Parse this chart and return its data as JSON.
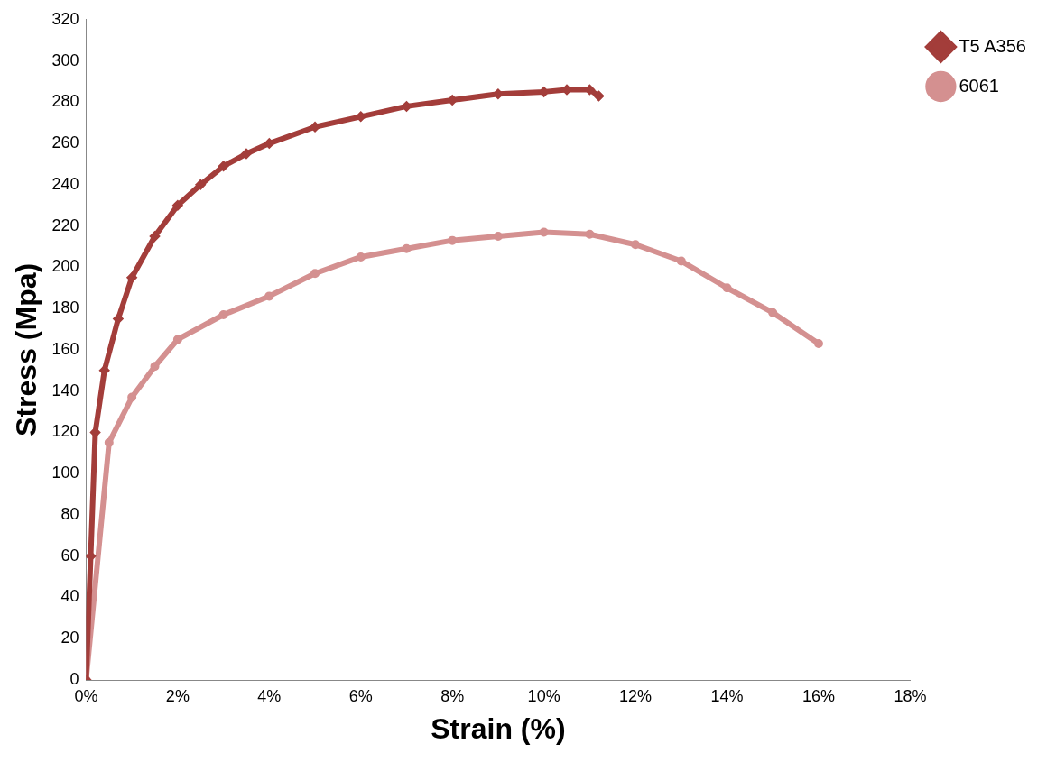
{
  "chart_data": {
    "type": "line",
    "xlabel": "Strain (%)",
    "ylabel": "Stress (Mpa)",
    "xlim": [
      0,
      18
    ],
    "xticks": [
      {
        "value": 0,
        "label": "0%"
      },
      {
        "value": 2,
        "label": "2%"
      },
      {
        "value": 4,
        "label": "4%"
      },
      {
        "value": 6,
        "label": "6%"
      },
      {
        "value": 8,
        "label": "8%"
      },
      {
        "value": 10,
        "label": "10%"
      },
      {
        "value": 12,
        "label": "12%"
      },
      {
        "value": 14,
        "label": "14%"
      },
      {
        "value": 16,
        "label": "16%"
      },
      {
        "value": 18,
        "label": "18%"
      }
    ],
    "ylim": [
      0,
      320
    ],
    "yticks": [
      0,
      20,
      40,
      60,
      80,
      100,
      120,
      140,
      160,
      180,
      200,
      220,
      240,
      260,
      280,
      300,
      320
    ],
    "grid": false,
    "legend": "right",
    "line_style": "solid",
    "series": [
      {
        "name": "T5 A356",
        "color": "#a33d3a",
        "marker": "diamond",
        "x": [
          0,
          0.1,
          0.2,
          0.4,
          0.7,
          1,
          1.5,
          2,
          2.5,
          3,
          3.5,
          4,
          5,
          6,
          7,
          8,
          9,
          10,
          10.5,
          11,
          11.2
        ],
        "values": [
          0,
          60,
          120,
          150,
          175,
          195,
          215,
          230,
          240,
          249,
          255,
          260,
          268,
          273,
          278,
          281,
          284,
          285,
          286,
          286,
          283
        ]
      },
      {
        "name": "6061",
        "color": "#d49090",
        "marker": "circle",
        "x": [
          0,
          0.5,
          1,
          1.5,
          2,
          3,
          4,
          5,
          6,
          7,
          8,
          9,
          10,
          11,
          12,
          13,
          14,
          15,
          16
        ],
        "values": [
          0,
          115,
          137,
          152,
          165,
          177,
          186,
          197,
          205,
          209,
          213,
          215,
          217,
          216,
          211,
          203,
          190,
          178,
          163
        ]
      }
    ]
  }
}
